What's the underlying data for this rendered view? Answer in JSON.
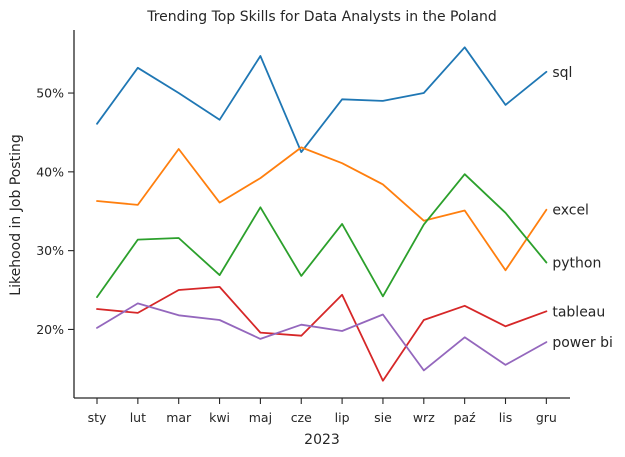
{
  "chart_data": {
    "type": "line",
    "title": "Trending Top Skills for Data Analysts in the Poland",
    "xlabel": "2023",
    "ylabel": "Likehood in Job Posting",
    "categories": [
      "sty",
      "lut",
      "mar",
      "kwi",
      "maj",
      "cze",
      "lip",
      "sie",
      "wrz",
      "paź",
      "lis",
      "gru"
    ],
    "ylim": [
      11.3,
      58.0
    ],
    "yticks": [
      20,
      30,
      40,
      50
    ],
    "ytick_labels": [
      "20%",
      "30%",
      "40%",
      "50%"
    ],
    "grid": false,
    "legend": "none",
    "series": [
      {
        "name": "sql",
        "color": "#1f77b4",
        "values": [
          46.1,
          53.2,
          50.0,
          46.6,
          54.7,
          42.5,
          49.2,
          49.0,
          50.0,
          55.8,
          48.5,
          52.7
        ]
      },
      {
        "name": "excel",
        "color": "#ff7f0e",
        "values": [
          36.3,
          35.8,
          42.9,
          36.1,
          39.2,
          43.1,
          41.1,
          38.4,
          33.8,
          35.1,
          27.5,
          35.2
        ]
      },
      {
        "name": "python",
        "color": "#2ca02c",
        "values": [
          24.1,
          31.4,
          31.6,
          26.9,
          35.5,
          26.8,
          33.4,
          24.2,
          33.3,
          39.7,
          34.8,
          28.5
        ]
      },
      {
        "name": "tableau",
        "color": "#d62728",
        "values": [
          22.6,
          22.1,
          25.0,
          25.4,
          19.6,
          19.2,
          24.4,
          13.5,
          21.2,
          23.0,
          20.4,
          22.3
        ]
      },
      {
        "name": "power bi",
        "color": "#9467bd",
        "values": [
          20.2,
          23.3,
          21.8,
          21.2,
          18.8,
          20.6,
          19.8,
          21.9,
          14.8,
          19.0,
          15.5,
          18.4
        ]
      }
    ]
  }
}
